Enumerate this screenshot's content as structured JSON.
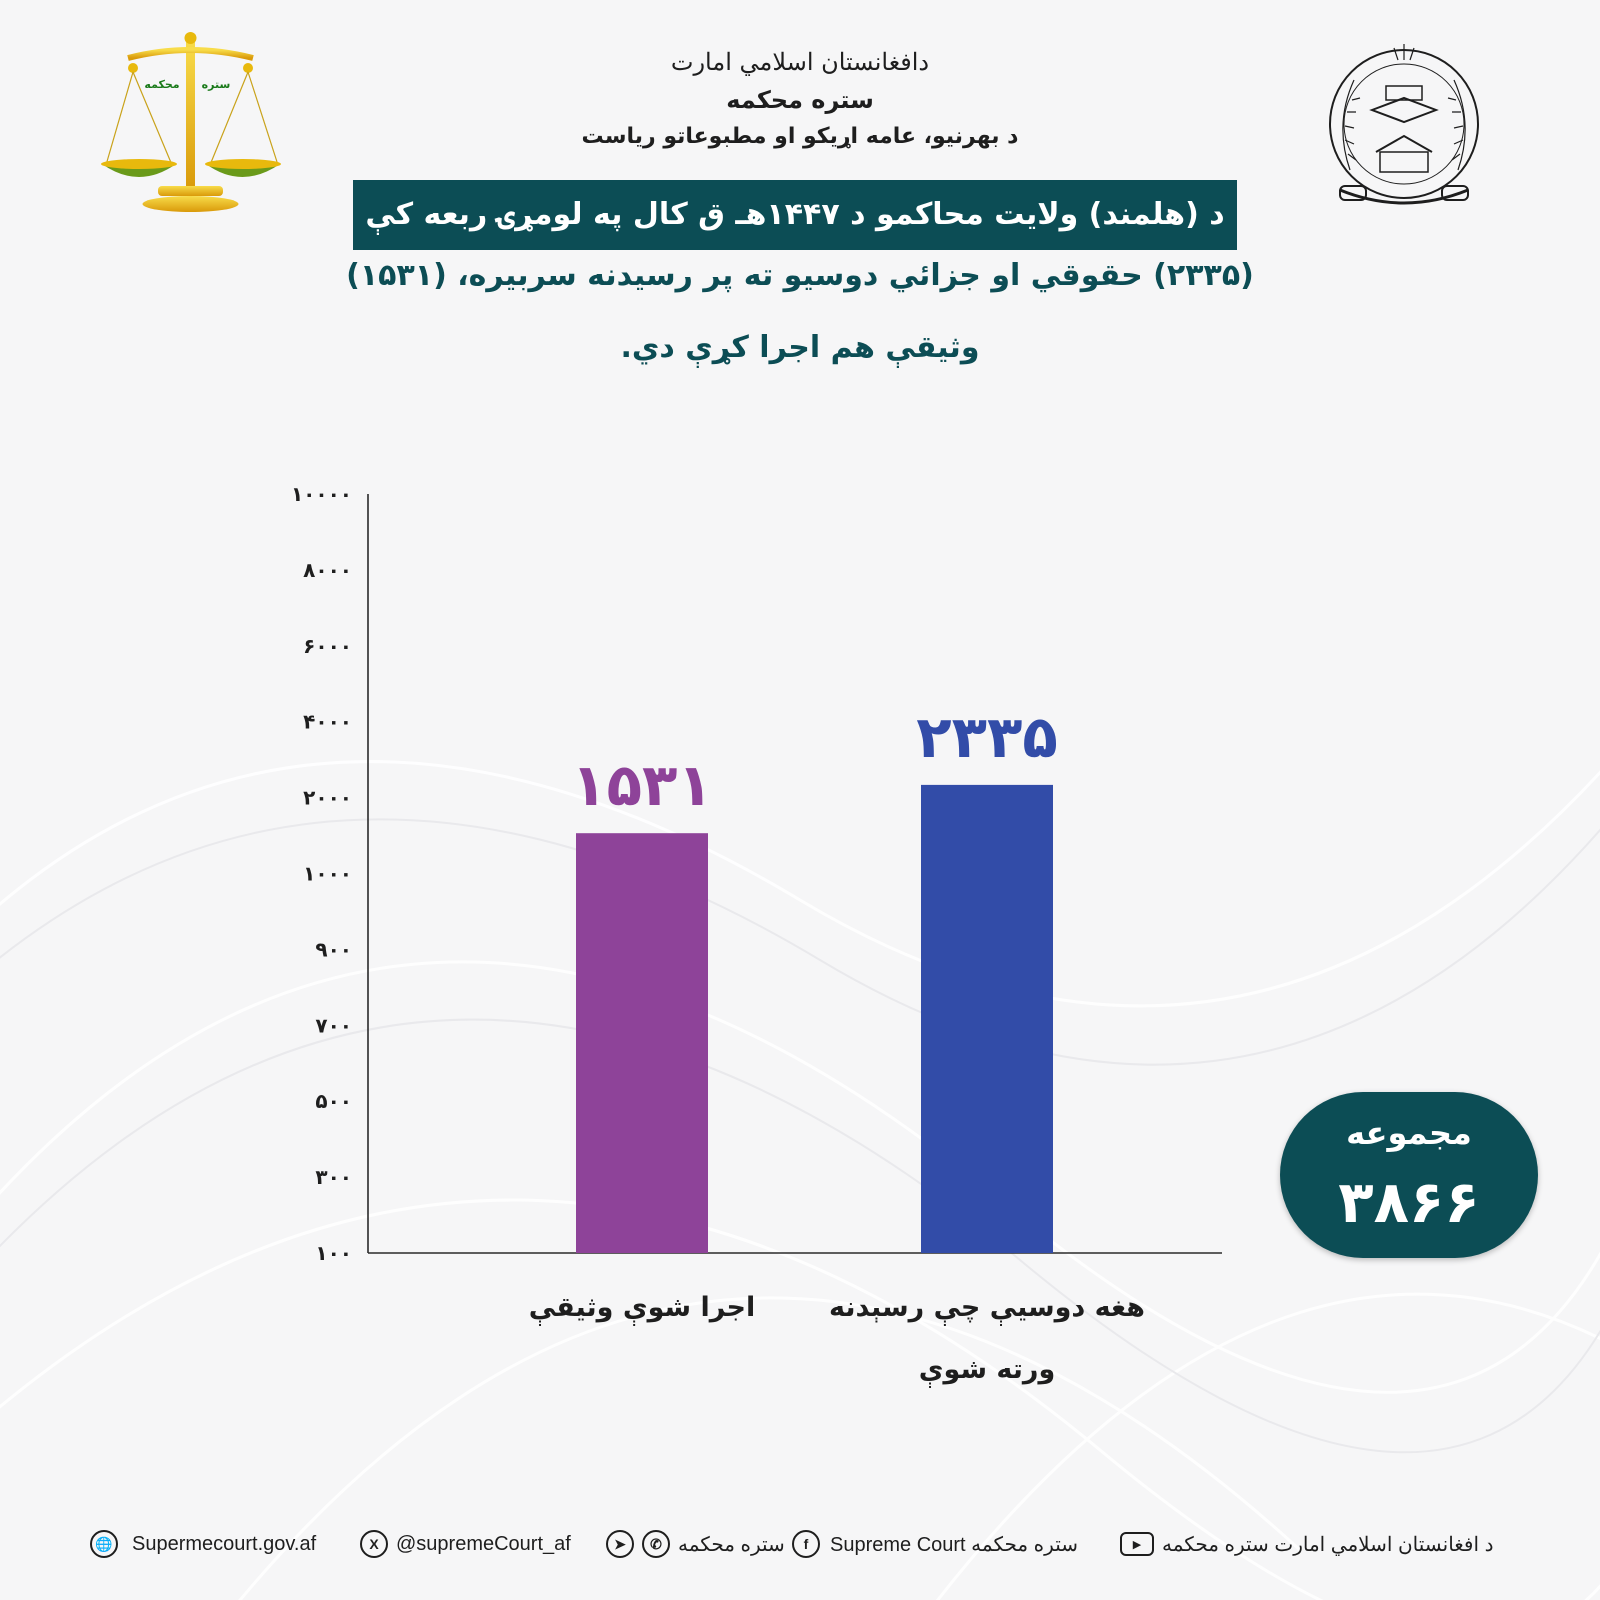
{
  "header": {
    "emirate": "دافغانستان اسلامي امارت",
    "court": "ستره محكمه",
    "department": "د بهرنيو، عامه اړيکو او مطبوعاتو رياست",
    "scale_labels": [
      "ستره",
      "محکمه"
    ]
  },
  "title": "د (هلمند) ولايت محاكمو د ۱۴۴۷هـ ق كال په لومړۍ ربعه كې",
  "subtitle_line1": "(۲۳۳۵) حقوقي او جزائي دوسيو ته پر رسيدنه سربيره، (۱۵۳۱)",
  "subtitle_line2": "وثيقې هم اجرا كړې دي.",
  "chart_data": {
    "type": "bar",
    "y_ticks": [
      "۱۰۰",
      "۳۰۰",
      "۵۰۰",
      "۷۰۰",
      "۹۰۰",
      "۱۰۰۰",
      "۲۰۰۰",
      "۴۰۰۰",
      "۶۰۰۰",
      "۸۰۰۰",
      "۱۰۰۰۰"
    ],
    "categories": [
      "اجرا شوې وثيقې",
      "هغه دوسيې چې رسېدنه ورته شوې"
    ],
    "category_lines": [
      [
        "اجرا شوې وثيقې"
      ],
      [
        "هغه دوسيې چې رسېدنه",
        "ورته شوې"
      ]
    ],
    "values": [
      1531,
      2335
    ],
    "value_labels": [
      "۱۵۳۱",
      "۲۳۳۵"
    ],
    "colors": [
      "#8e4399",
      "#324ca8"
    ],
    "grid": false
  },
  "total": {
    "label": "مجموعه",
    "value": "۳۸۶۶",
    "number": 3866
  },
  "footer": {
    "website": "Supermecourt.gov.af",
    "x_handle": "@supremeCourt_af",
    "telegram_whatsapp": "ستره محكمه",
    "facebook": "Supreme Court ستره محكمه",
    "youtube": "د افغانستان اسلامي امارت ستره محكمه"
  },
  "colors": {
    "teal": "#0c4d55",
    "purple": "#8e4399",
    "blue": "#324ca8",
    "gold": "#e8b90d"
  }
}
